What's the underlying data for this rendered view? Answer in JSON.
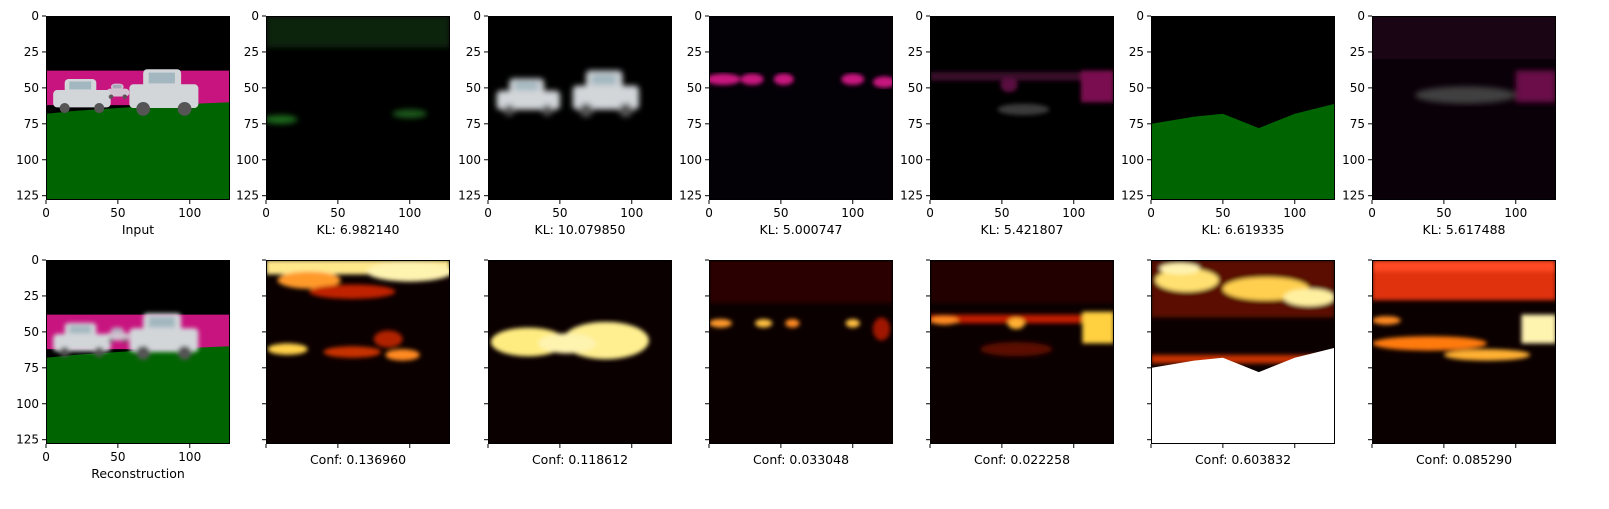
{
  "chart_data": {
    "type": "image-grid",
    "grid": {
      "rows": 2,
      "cols": 7
    },
    "image_extent": {
      "xlim": [
        0,
        128
      ],
      "ylim": [
        128,
        0
      ]
    },
    "x_ticks": [
      0,
      50,
      100
    ],
    "y_ticks": [
      0,
      25,
      50,
      75,
      100,
      125
    ],
    "colors": {
      "sky": "#000000",
      "band": "#c8147f",
      "ground": "#006400",
      "car": "#d2d6d9",
      "heat_low": "#0b0000",
      "heat_mid": "#a21000",
      "heat_high": "#fff3a0"
    },
    "row1": [
      {
        "label": "Input",
        "kind": "input"
      },
      {
        "label": "KL: 6.982140",
        "kind": "kl1"
      },
      {
        "label": "KL: 10.079850",
        "kind": "kl2"
      },
      {
        "label": "KL: 5.000747",
        "kind": "kl3"
      },
      {
        "label": "KL: 5.421807",
        "kind": "kl4"
      },
      {
        "label": "KL: 6.619335",
        "kind": "kl5"
      },
      {
        "label": "KL: 5.617488",
        "kind": "kl6"
      }
    ],
    "row2": [
      {
        "label": "Reconstruction",
        "kind": "recon"
      },
      {
        "label": "Conf: 0.136960",
        "kind": "conf1"
      },
      {
        "label": "Conf: 0.118612",
        "kind": "conf2"
      },
      {
        "label": "Conf: 0.033048",
        "kind": "conf3"
      },
      {
        "label": "Conf: 0.022258",
        "kind": "conf4"
      },
      {
        "label": "Conf: 0.603832",
        "kind": "conf5"
      },
      {
        "label": "Conf: 0.085290",
        "kind": "conf6"
      }
    ]
  }
}
